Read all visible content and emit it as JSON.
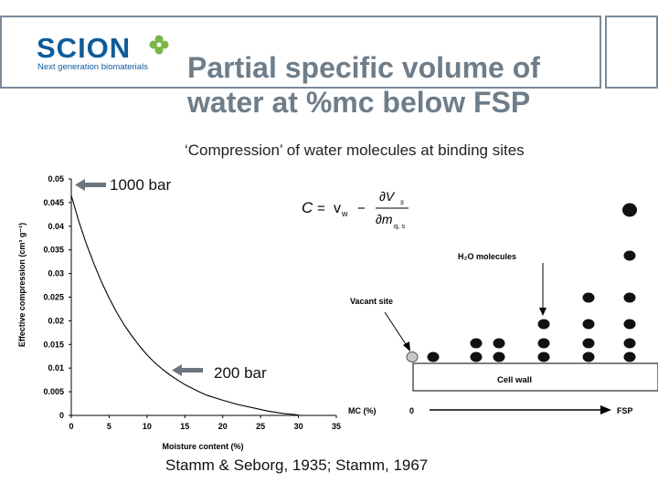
{
  "header": {
    "logo_text": "SCION",
    "logo_tagline": "Next generation biomaterials",
    "title_line1": "Partial specific volume of",
    "title_line2": "water at %mc below FSP",
    "subtitle": "‘Compression’ of water molecules at binding sites"
  },
  "annotations": {
    "label_1000": "1000 bar",
    "label_200": "200 bar",
    "citation": "Stamm & Seborg, 1935; Stamm, 1967"
  },
  "chart_data": {
    "type": "line",
    "title": "",
    "xlabel": "Moisture content (%)",
    "ylabel": "Effective compression (cm³ g⁻¹)",
    "xlim": [
      0,
      35
    ],
    "ylim": [
      0,
      0.05
    ],
    "xticks": [
      "0",
      "5",
      "10",
      "15",
      "20",
      "25",
      "30",
      "35"
    ],
    "yticks": [
      "0",
      "0.005",
      "0.01",
      "0.015",
      "0.02",
      "0.025",
      "0.03",
      "0.035",
      "0.04",
      "0.045",
      "0.05"
    ],
    "grid": false,
    "series": [
      {
        "x": [
          0,
          1,
          2,
          3,
          4,
          5,
          6,
          7,
          8,
          9,
          10,
          11,
          12,
          13,
          14,
          15,
          16,
          17,
          18,
          20,
          22,
          24,
          26,
          28,
          30
        ],
        "y": [
          0.0465,
          0.041,
          0.0362,
          0.032,
          0.0282,
          0.0248,
          0.0218,
          0.0191,
          0.0168,
          0.0147,
          0.0128,
          0.0112,
          0.0098,
          0.0086,
          0.0075,
          0.0065,
          0.0057,
          0.0049,
          0.0042,
          0.0032,
          0.0023,
          0.0016,
          0.0009,
          0.0004,
          0.0001
        ]
      }
    ]
  },
  "diagram": {
    "formula_text": "C = vw − ∂Vs/∂mq,s",
    "molecules_label": "H₂O molecules",
    "vacant_label": "Vacant site",
    "cellwall_label": "Cell wall",
    "mc_label": "MC (%)",
    "axis_start": "0",
    "axis_end": "FSP",
    "formula": {
      "lhs": "C",
      "eq": "=",
      "vw_v": "v",
      "vw_sub": "w",
      "minus": "−",
      "partial_num": "∂V",
      "partial_num_sub": "s",
      "partial_den": "∂m",
      "partial_den_sub": "q, s"
    }
  }
}
